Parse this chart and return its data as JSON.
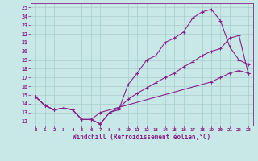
{
  "bg_color": "#c8e8e8",
  "line_color": "#882288",
  "grid_color": "#aacccc",
  "xlabel": "Windchill (Refroidissement éolien,°C)",
  "xlim": [
    -0.5,
    23.5
  ],
  "ylim": [
    11.5,
    25.5
  ],
  "xtick_vals": [
    0,
    1,
    2,
    3,
    4,
    5,
    6,
    7,
    8,
    9,
    10,
    11,
    12,
    13,
    14,
    15,
    16,
    17,
    18,
    19,
    20,
    21,
    22,
    23
  ],
  "ytick_vals": [
    12,
    13,
    14,
    15,
    16,
    17,
    18,
    19,
    20,
    21,
    22,
    23,
    24,
    25
  ],
  "line1_x": [
    0,
    1,
    2,
    3,
    4,
    5,
    6,
    7,
    8,
    9,
    10,
    11,
    12,
    13,
    14,
    15,
    16,
    17,
    18,
    19,
    20,
    21,
    22,
    23
  ],
  "line1_y": [
    14.8,
    13.8,
    13.3,
    13.5,
    13.3,
    12.2,
    12.2,
    11.7,
    13.0,
    13.3,
    16.2,
    17.5,
    19.0,
    19.5,
    21.0,
    21.5,
    22.2,
    23.8,
    24.5,
    24.8,
    23.5,
    20.5,
    19.0,
    18.5
  ],
  "line2_x": [
    0,
    1,
    2,
    3,
    4,
    5,
    6,
    7,
    8,
    9,
    10,
    11,
    12,
    13,
    14,
    15,
    16,
    17,
    18,
    19,
    20,
    21,
    22,
    23
  ],
  "line2_y": [
    14.8,
    13.8,
    13.3,
    13.5,
    13.3,
    12.2,
    12.2,
    11.7,
    13.0,
    13.5,
    14.5,
    15.2,
    15.8,
    16.4,
    17.0,
    17.5,
    18.2,
    18.8,
    19.5,
    20.0,
    20.3,
    21.5,
    21.8,
    17.5
  ],
  "line3_x": [
    0,
    1,
    2,
    3,
    4,
    5,
    6,
    7,
    19,
    20,
    21,
    22,
    23
  ],
  "line3_y": [
    14.8,
    13.8,
    13.3,
    13.5,
    13.3,
    12.2,
    12.2,
    13.0,
    16.5,
    17.0,
    17.5,
    17.8,
    17.5
  ]
}
